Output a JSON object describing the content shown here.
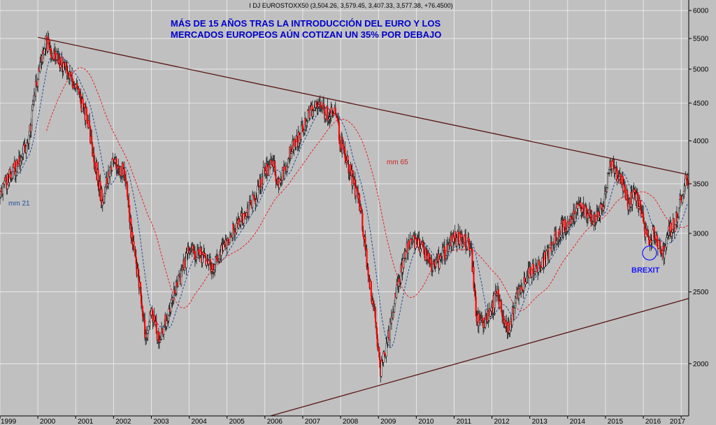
{
  "chart_data": {
    "type": "candlestick",
    "header": "I DJ EUROSTOXX50 (3,504.26, 3,579.45, 3,407.33, 3,577.38, +76.4500)",
    "title_lines": [
      "MÁS DE 15 AÑOS TRAS LA INTRODUCCIÓN DEL EURO Y LOS",
      "MERCADOS EUROPEOS AÚN COTIZAN UN 35% POR DEBAJO"
    ],
    "x_ticks": [
      "1999",
      "2000",
      "2001",
      "2002",
      "2003",
      "2004",
      "2005",
      "2006",
      "2007",
      "2008",
      "2009",
      "2010",
      "2011",
      "2012",
      "2013",
      "2014",
      "2015",
      "2016",
      "2017"
    ],
    "y_ticks": [
      2000,
      2500,
      3000,
      3500,
      4000,
      4500,
      5000,
      5500,
      6000
    ],
    "y_scale": "log",
    "ylim": [
      1700,
      6200
    ],
    "xlim": [
      1999.0,
      2017.2
    ],
    "annotations": {
      "mm21": "mm 21",
      "mm65": "mm 65",
      "brexit": "BREXIT"
    },
    "colors": {
      "up": "#ffffff",
      "down": "#ff0000",
      "wick": "#000000",
      "mm21": "#1f4e99",
      "mm65": "#e8202a",
      "trendline": "#5a1414",
      "background": "#c0c0c0",
      "grid": "#ffffff"
    },
    "trendlines": [
      {
        "name": "upper",
        "from": [
          2000.0,
          5520
        ],
        "to": [
          2017.2,
          3600
        ]
      },
      {
        "name": "lower",
        "from": [
          2006.15,
          1700
        ],
        "to": [
          2017.2,
          2450
        ]
      }
    ],
    "price_anchors": [
      [
        1999.0,
        3400
      ],
      [
        1999.5,
        3750
      ],
      [
        1999.75,
        4000
      ],
      [
        1999.9,
        4600
      ],
      [
        2000.2,
        5450
      ],
      [
        2000.5,
        5200
      ],
      [
        2000.8,
        4950
      ],
      [
        2001.0,
        4700
      ],
      [
        2001.3,
        4300
      ],
      [
        2001.7,
        3300
      ],
      [
        2001.85,
        3600
      ],
      [
        2002.0,
        3800
      ],
      [
        2002.3,
        3600
      ],
      [
        2002.5,
        2900
      ],
      [
        2002.7,
        2550
      ],
      [
        2002.85,
        2150
      ],
      [
        2003.0,
        2350
      ],
      [
        2003.2,
        2150
      ],
      [
        2003.5,
        2400
      ],
      [
        2003.8,
        2650
      ],
      [
        2004.0,
        2850
      ],
      [
        2004.3,
        2800
      ],
      [
        2004.6,
        2700
      ],
      [
        2004.9,
        2900
      ],
      [
        2005.2,
        3050
      ],
      [
        2005.5,
        3200
      ],
      [
        2005.8,
        3400
      ],
      [
        2006.0,
        3650
      ],
      [
        2006.2,
        3700
      ],
      [
        2006.4,
        3500
      ],
      [
        2006.7,
        3900
      ],
      [
        2006.95,
        4100
      ],
      [
        2007.1,
        4300
      ],
      [
        2007.35,
        4500
      ],
      [
        2007.6,
        4350
      ],
      [
        2007.85,
        4400
      ],
      [
        2008.0,
        4000
      ],
      [
        2008.2,
        3700
      ],
      [
        2008.5,
        3300
      ],
      [
        2008.75,
        2600
      ],
      [
        2008.9,
        2350
      ],
      [
        2009.05,
        1950
      ],
      [
        2009.25,
        2150
      ],
      [
        2009.5,
        2550
      ],
      [
        2009.75,
        2850
      ],
      [
        2010.0,
        2950
      ],
      [
        2010.25,
        2800
      ],
      [
        2010.45,
        2700
      ],
      [
        2010.7,
        2800
      ],
      [
        2011.0,
        2950
      ],
      [
        2011.25,
        2950
      ],
      [
        2011.45,
        2850
      ],
      [
        2011.6,
        2300
      ],
      [
        2011.75,
        2250
      ],
      [
        2011.95,
        2350
      ],
      [
        2012.15,
        2500
      ],
      [
        2012.3,
        2300
      ],
      [
        2012.45,
        2200
      ],
      [
        2012.7,
        2500
      ],
      [
        2012.9,
        2600
      ],
      [
        2013.1,
        2700
      ],
      [
        2013.35,
        2750
      ],
      [
        2013.55,
        2850
      ],
      [
        2013.8,
        3050
      ],
      [
        2014.0,
        3100
      ],
      [
        2014.3,
        3250
      ],
      [
        2014.5,
        3200
      ],
      [
        2014.7,
        3100
      ],
      [
        2014.85,
        3200
      ],
      [
        2015.0,
        3400
      ],
      [
        2015.15,
        3750
      ],
      [
        2015.3,
        3600
      ],
      [
        2015.5,
        3450
      ],
      [
        2015.6,
        3300
      ],
      [
        2015.75,
        3400
      ],
      [
        2015.9,
        3250
      ],
      [
        2016.1,
        2950
      ],
      [
        2016.3,
        3000
      ],
      [
        2016.5,
        2800
      ],
      [
        2016.65,
        3000
      ],
      [
        2016.85,
        3100
      ],
      [
        2016.95,
        3250
      ],
      [
        2017.1,
        3500
      ],
      [
        2017.18,
        3577
      ]
    ]
  }
}
